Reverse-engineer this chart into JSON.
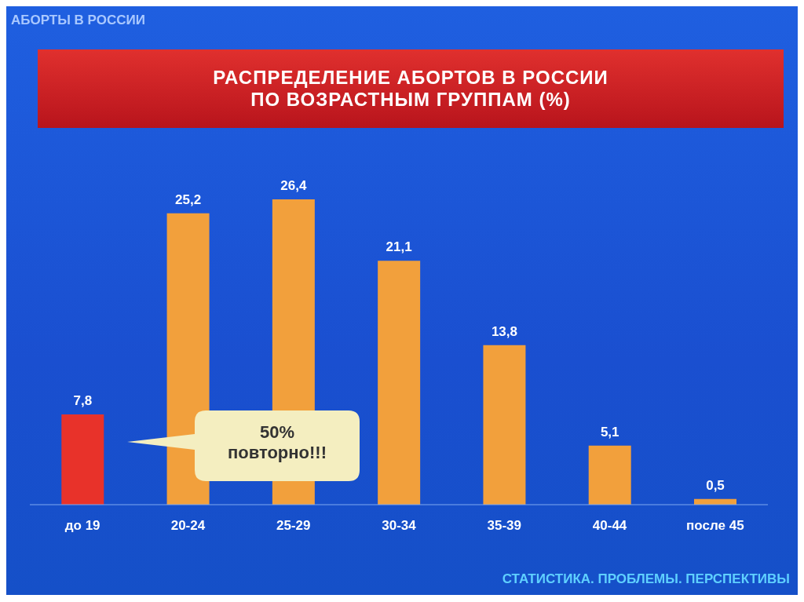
{
  "chart_data": {
    "type": "bar",
    "title": "РАСПРЕДЕЛЕНИЕ АБОРТОВ В РОССИИ\nПО ВОЗРАСТНЫМ ГРУППАМ (%)",
    "categories": [
      "до 19",
      "20-24",
      "25-29",
      "30-34",
      "35-39",
      "40-44",
      "после 45"
    ],
    "values": [
      7.8,
      25.2,
      26.4,
      21.1,
      13.8,
      5.1,
      0.5
    ],
    "value_labels": [
      "7,8",
      "25,2",
      "26,4",
      "21,1",
      "13,8",
      "5,1",
      "0,5"
    ],
    "colors": [
      "#e8322a",
      "#f2a03c",
      "#f2a03c",
      "#f2a03c",
      "#f2a03c",
      "#f2a03c",
      "#f2a03c"
    ],
    "annotations": [
      "АБОРТЫ В РОССИИ",
      "50%\nповторно!!!",
      "СТАТИСТИКА. ПРОБЛЕМЫ. ПЕРСПЕКТИВЫ"
    ]
  }
}
